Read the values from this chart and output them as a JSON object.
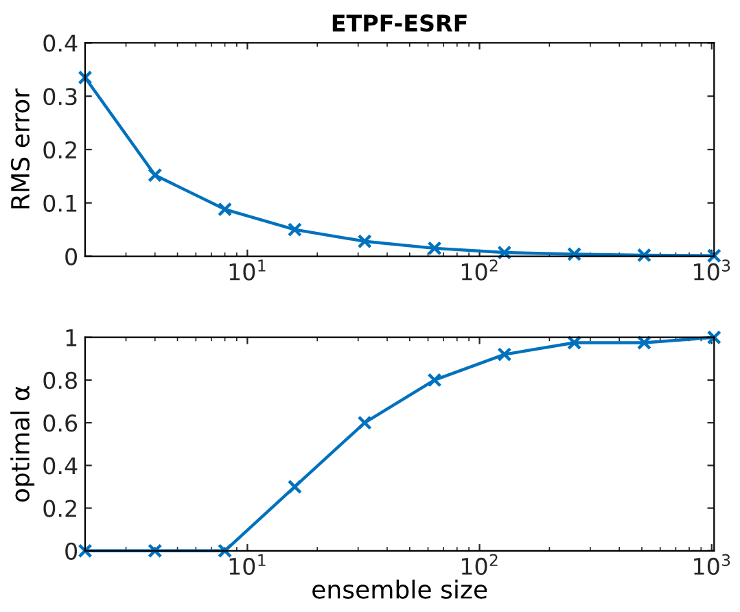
{
  "chart_data": [
    {
      "type": "line",
      "title": "ETPF-ESRF",
      "ylabel": "RMS error",
      "log": "x",
      "marker": "cross",
      "grid": false,
      "x": [
        2,
        4,
        8,
        16,
        32,
        64,
        128,
        256,
        512,
        1024
      ],
      "series": [
        {
          "color": "#0072bd",
          "values": [
            0.335,
            0.152,
            0.088,
            0.05,
            0.028,
            0.015,
            0.007,
            0.004,
            0.002,
            0.001
          ]
        }
      ],
      "xlim": [
        2,
        1024
      ],
      "xticks": [
        {
          "value": 10,
          "label": "10$^{1}$"
        },
        {
          "value": 100,
          "label": "10$^{2}$"
        },
        {
          "value": 1000,
          "label": "10$^{3}$"
        }
      ],
      "ylim": [
        0,
        0.4
      ],
      "yticks": [
        0,
        0.1,
        0.2,
        0.3,
        0.4
      ]
    },
    {
      "type": "line",
      "xlabel": "ensemble size",
      "ylabel": "optimal α",
      "log": "x",
      "marker": "cross",
      "grid": false,
      "x": [
        2,
        4,
        8,
        16,
        32,
        64,
        128,
        256,
        512,
        1024
      ],
      "series": [
        {
          "color": "#0072bd",
          "values": [
            0,
            0,
            0,
            0.3,
            0.6,
            0.8,
            0.92,
            0.975,
            0.975,
            1.0
          ]
        }
      ],
      "xlim": [
        2,
        1024
      ],
      "xticks": [
        {
          "value": 10,
          "label": "10$^{1}$"
        },
        {
          "value": 100,
          "label": "10$^{2}$"
        },
        {
          "value": 1000,
          "label": "10$^{3}$"
        }
      ],
      "ylim": [
        0,
        1
      ],
      "yticks": [
        0,
        0.2,
        0.4,
        0.6,
        0.8,
        1
      ]
    }
  ]
}
